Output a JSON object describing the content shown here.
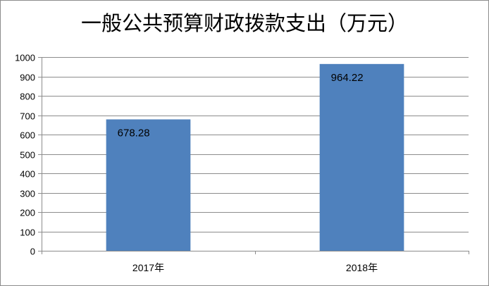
{
  "chart_data": {
    "type": "bar",
    "title": "一般公共预算财政拨款支出（万元）",
    "categories": [
      "2017年",
      "2018年"
    ],
    "values": [
      678.28,
      964.22
    ],
    "data_labels": [
      "678.28",
      "964.22"
    ],
    "ylim": [
      0,
      1000
    ],
    "yticks": [
      0,
      100,
      200,
      300,
      400,
      500,
      600,
      700,
      800,
      900,
      1000
    ],
    "grid": true,
    "legend": "none",
    "bar_color": "#4f81bd",
    "grid_color": "#8c8c8c"
  }
}
